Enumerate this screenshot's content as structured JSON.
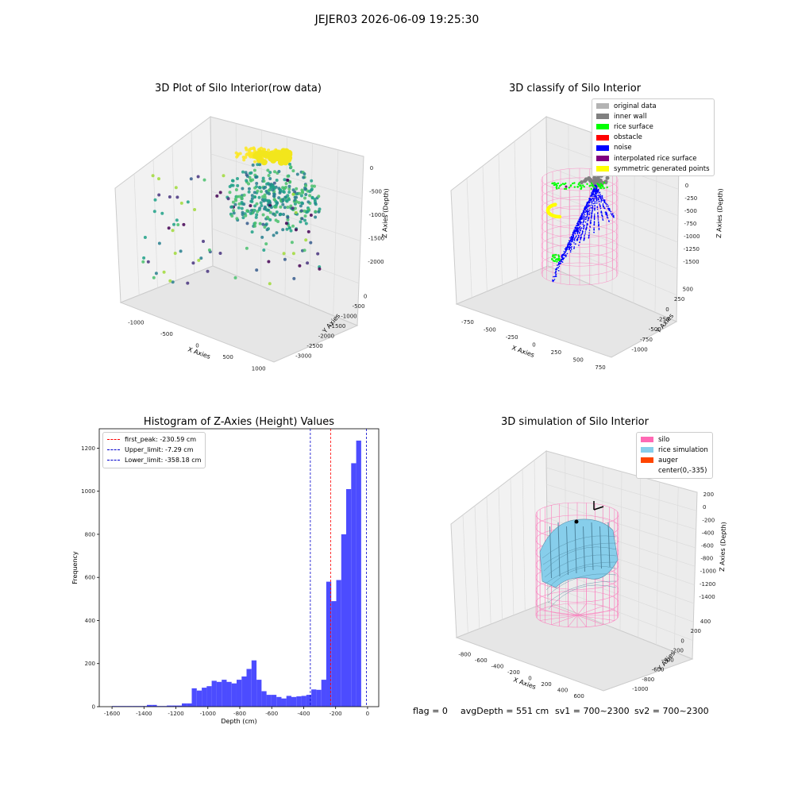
{
  "figure": {
    "suptitle": "JEJER03 2026-06-09 19:25:30",
    "footer": {
      "flag": "flag = 0",
      "avg": "avgDepth = 551 cm",
      "sv1": "sv1 = 700~2300",
      "sv2": "sv2 = 700~2300"
    }
  },
  "chart_data": [
    {
      "type": "scatter",
      "title": "3D Plot of Silo Interior(row data)",
      "xlabel": "X Axies",
      "ylabel": "Y Axies",
      "zlabel": "Z Axies (Depth)",
      "xticks": [
        "-1000",
        "-500",
        "0",
        "500",
        "1000"
      ],
      "yticks": [
        "0",
        "-500",
        "-1000",
        "-1500",
        "-2000",
        "-2500",
        "-3000"
      ],
      "zticks": [
        "0",
        "-500",
        "-1000",
        "-1500",
        "-2000"
      ],
      "colormap": "viridis",
      "grid": true
    },
    {
      "type": "scatter",
      "title": "3D classify of Silo Interior",
      "xlabel": "X Axies",
      "ylabel": "Y Axies",
      "zlabel": "Z Axies (Depth)",
      "xticks": [
        "-750",
        "-500",
        "-250",
        "0",
        "250",
        "500",
        "750"
      ],
      "yticks": [
        "500",
        "250",
        "0",
        "-250",
        "-500",
        "-750",
        "-1000"
      ],
      "zticks": [
        "0",
        "-250",
        "-500",
        "-750",
        "-1000",
        "-1250",
        "-1500"
      ],
      "legend_position": "top-right",
      "legend": [
        {
          "label": "original data",
          "color": "#b3b3b3"
        },
        {
          "label": "inner wall",
          "color": "#808080"
        },
        {
          "label": "rice surface",
          "color": "#00ff00"
        },
        {
          "label": "obstacle",
          "color": "#ff0000"
        },
        {
          "label": "noise",
          "color": "#0000ff"
        },
        {
          "label": "interpolated rice surface",
          "color": "#800080"
        },
        {
          "label": "symmetric generated points",
          "color": "#ffff00"
        }
      ],
      "grid": true
    },
    {
      "type": "bar",
      "title": "Histogram of Z-Axies (Height) Values",
      "xlabel": "Depth (cm)",
      "ylabel": "Frequency",
      "xlim": [
        -1680,
        70
      ],
      "ylim": [
        0,
        1290
      ],
      "xticks": [
        -1600,
        -1400,
        -1200,
        -1000,
        -800,
        -600,
        -400,
        -200,
        0
      ],
      "yticks": [
        0,
        200,
        400,
        600,
        800,
        1000,
        1200
      ],
      "bar_color": "#4c4cff",
      "bins": {
        "start": -1600,
        "width": 31.2,
        "counts": [
          3,
          3,
          3,
          3,
          3,
          3,
          3,
          8,
          8,
          3,
          3,
          5,
          5,
          5,
          15,
          15,
          85,
          75,
          88,
          95,
          120,
          115,
          125,
          115,
          108,
          125,
          140,
          175,
          215,
          125,
          72,
          55,
          55,
          45,
          38,
          50,
          45,
          48,
          50,
          55,
          80,
          78,
          125,
          580,
          490,
          588,
          800,
          1010,
          1130,
          1235
        ]
      },
      "reference_lines": [
        {
          "label": "first_peak: -230.59 cm",
          "value": -230.59,
          "color": "#ff0000"
        },
        {
          "label": "Upper_limit: -7.29 cm",
          "value": -7.29,
          "color": "#0000cc"
        },
        {
          "label": "Lower_limit: -358.18 cm",
          "value": -358.18,
          "color": "#0000cc"
        }
      ],
      "legend_position": "top-left"
    },
    {
      "type": "surface",
      "title": "3D simulation of Silo Interior",
      "xlabel": "X Axies",
      "ylabel": "Y Axies",
      "zlabel": "Z Axies (Depth)",
      "xticks": [
        "-800",
        "-600",
        "-400",
        "-200",
        "0",
        "200",
        "400",
        "600",
        "800"
      ],
      "yticks": [
        "400",
        "200",
        "0",
        "-200",
        "-400",
        "-600",
        "-800",
        "-1000"
      ],
      "zticks": [
        "200",
        "0",
        "-200",
        "-400",
        "-600",
        "-800",
        "-1000",
        "-1200",
        "-1400"
      ],
      "legend_position": "top-right",
      "legend": [
        {
          "label": "silo",
          "color": "#ff69b4"
        },
        {
          "label": "rice simulation",
          "color": "#87ceeb"
        },
        {
          "label": "auger",
          "color": "#ff4500"
        },
        {
          "label": "center(0,-335)",
          "color": "#ffffff"
        }
      ],
      "grid": true
    }
  ]
}
